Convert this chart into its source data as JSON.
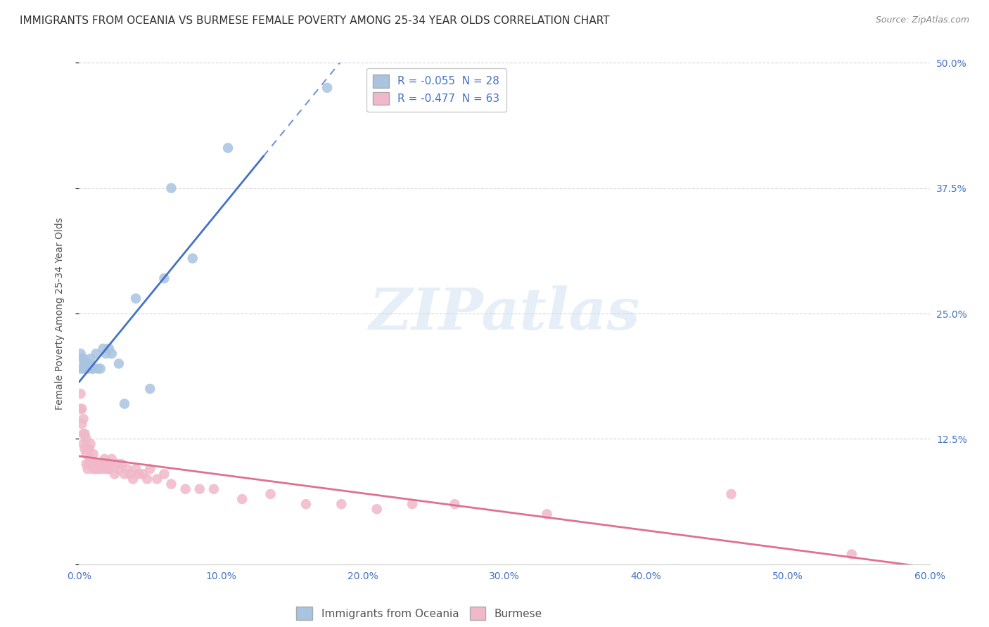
{
  "title": "IMMIGRANTS FROM OCEANIA VS BURMESE FEMALE POVERTY AMONG 25-34 YEAR OLDS CORRELATION CHART",
  "source": "Source: ZipAtlas.com",
  "ylabel": "Female Poverty Among 25-34 Year Olds",
  "xlim": [
    0.0,
    0.6
  ],
  "ylim": [
    0.0,
    0.5
  ],
  "xticks": [
    0.0,
    0.1,
    0.2,
    0.3,
    0.4,
    0.5,
    0.6
  ],
  "xtick_labels": [
    "0.0%",
    "10.0%",
    "20.0%",
    "30.0%",
    "40.0%",
    "50.0%",
    "60.0%"
  ],
  "yticks": [
    0.0,
    0.125,
    0.25,
    0.375,
    0.5
  ],
  "ytick_labels": [
    "",
    "12.5%",
    "25.0%",
    "37.5%",
    "50.0%"
  ],
  "blue_scatter": {
    "x": [
      0.001,
      0.001,
      0.002,
      0.003,
      0.003,
      0.004,
      0.005,
      0.006,
      0.007,
      0.008,
      0.009,
      0.01,
      0.012,
      0.013,
      0.015,
      0.017,
      0.019,
      0.021,
      0.023,
      0.028,
      0.032,
      0.04,
      0.05,
      0.06,
      0.065,
      0.08,
      0.105,
      0.175
    ],
    "y": [
      0.195,
      0.21,
      0.205,
      0.195,
      0.205,
      0.2,
      0.195,
      0.195,
      0.2,
      0.205,
      0.195,
      0.195,
      0.21,
      0.195,
      0.195,
      0.215,
      0.21,
      0.215,
      0.21,
      0.2,
      0.16,
      0.265,
      0.175,
      0.285,
      0.375,
      0.305,
      0.415,
      0.475
    ]
  },
  "pink_scatter": {
    "x": [
      0.001,
      0.001,
      0.002,
      0.002,
      0.003,
      0.003,
      0.003,
      0.004,
      0.004,
      0.005,
      0.005,
      0.005,
      0.006,
      0.006,
      0.007,
      0.007,
      0.008,
      0.008,
      0.009,
      0.01,
      0.01,
      0.011,
      0.012,
      0.013,
      0.014,
      0.015,
      0.016,
      0.017,
      0.018,
      0.019,
      0.02,
      0.021,
      0.022,
      0.023,
      0.025,
      0.027,
      0.028,
      0.03,
      0.032,
      0.034,
      0.036,
      0.038,
      0.04,
      0.042,
      0.045,
      0.048,
      0.05,
      0.055,
      0.06,
      0.065,
      0.075,
      0.085,
      0.095,
      0.115,
      0.135,
      0.16,
      0.185,
      0.21,
      0.235,
      0.265,
      0.33,
      0.46,
      0.545
    ],
    "y": [
      0.155,
      0.17,
      0.14,
      0.155,
      0.12,
      0.13,
      0.145,
      0.115,
      0.13,
      0.1,
      0.11,
      0.125,
      0.095,
      0.115,
      0.1,
      0.115,
      0.105,
      0.12,
      0.1,
      0.095,
      0.11,
      0.1,
      0.095,
      0.1,
      0.095,
      0.1,
      0.1,
      0.095,
      0.105,
      0.1,
      0.095,
      0.095,
      0.1,
      0.105,
      0.09,
      0.1,
      0.095,
      0.1,
      0.09,
      0.095,
      0.09,
      0.085,
      0.095,
      0.09,
      0.09,
      0.085,
      0.095,
      0.085,
      0.09,
      0.08,
      0.075,
      0.075,
      0.075,
      0.065,
      0.07,
      0.06,
      0.06,
      0.055,
      0.06,
      0.06,
      0.05,
      0.07,
      0.01
    ]
  },
  "blue_line_color": "#4472c4",
  "pink_line_color": "#e07090",
  "blue_scatter_color": "#a8c4e0",
  "pink_scatter_color": "#f0b8c8",
  "watermark_text": "ZIPatlas",
  "background_color": "#ffffff",
  "grid_color": "#cccccc",
  "title_fontsize": 11,
  "ylabel_fontsize": 10,
  "tick_fontsize": 10,
  "legend_top_labels": [
    "R = -0.055  N = 28",
    "R = -0.477  N = 63"
  ],
  "legend_bottom_labels": [
    "Immigrants from Oceania",
    "Burmese"
  ],
  "blue_line_solid_xlim": [
    0.0,
    0.13
  ],
  "blue_line_dashed_xlim": [
    0.13,
    0.6
  ],
  "pink_line_xlim": [
    0.0,
    0.6
  ]
}
